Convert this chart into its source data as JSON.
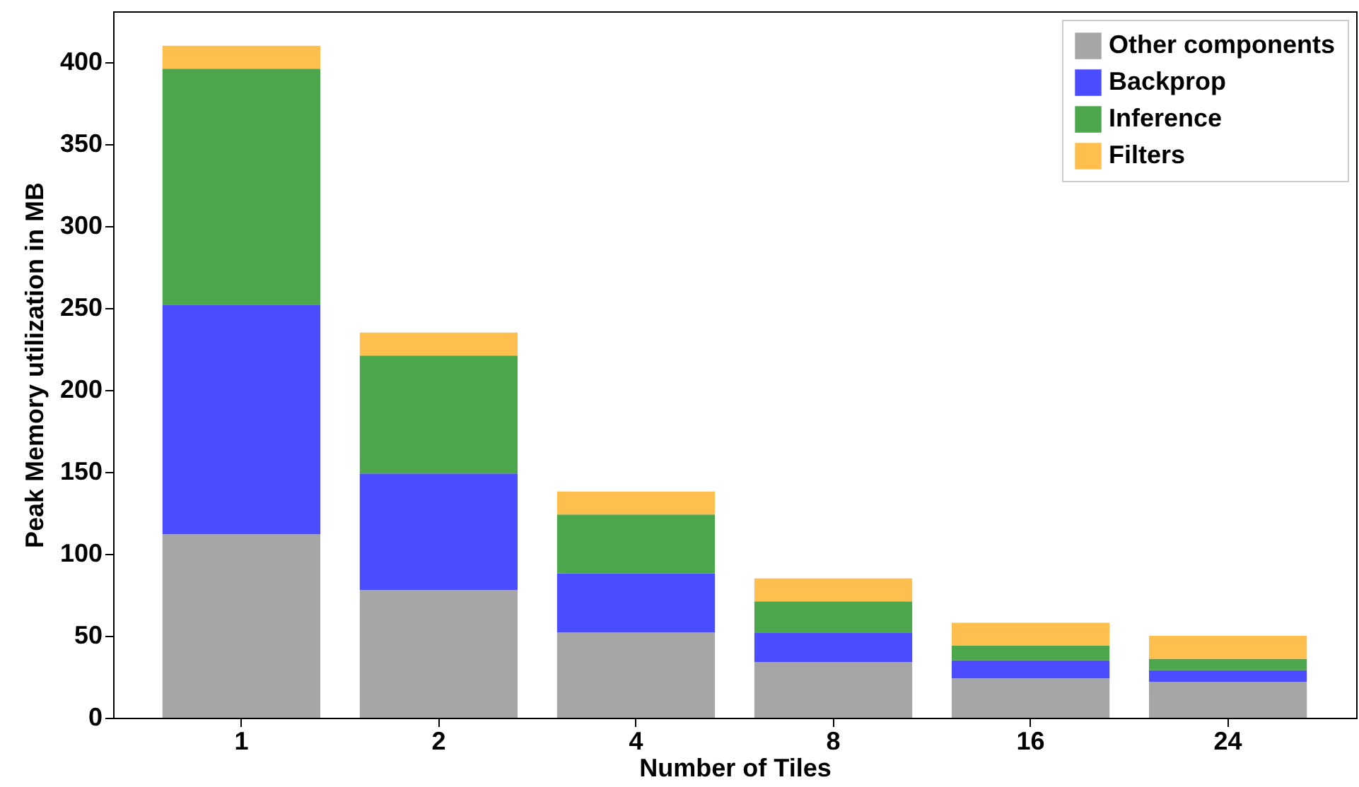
{
  "chart_data": {
    "type": "bar",
    "stacked": true,
    "xlabel": "Number of Tiles",
    "ylabel": "Peak Memory utilization in MB",
    "categories": [
      "1",
      "2",
      "4",
      "8",
      "16",
      "24"
    ],
    "series": [
      {
        "name": "Other components",
        "color": "#a6a6a6",
        "values": [
          112,
          78,
          52,
          34,
          24,
          22
        ]
      },
      {
        "name": "Backprop",
        "color": "#4b4bff",
        "values": [
          140,
          71,
          36,
          18,
          11,
          7
        ]
      },
      {
        "name": "Inference",
        "color": "#4ca64c",
        "values": [
          144,
          72,
          36,
          19,
          9,
          7
        ]
      },
      {
        "name": "Filters",
        "color": "#ffbf4f",
        "values": [
          14,
          14,
          14,
          14,
          14,
          14
        ]
      }
    ],
    "ylim": [
      0,
      431
    ],
    "yticks": [
      0,
      50,
      100,
      150,
      200,
      250,
      300,
      350,
      400
    ],
    "grid": false,
    "legend": "top right"
  }
}
